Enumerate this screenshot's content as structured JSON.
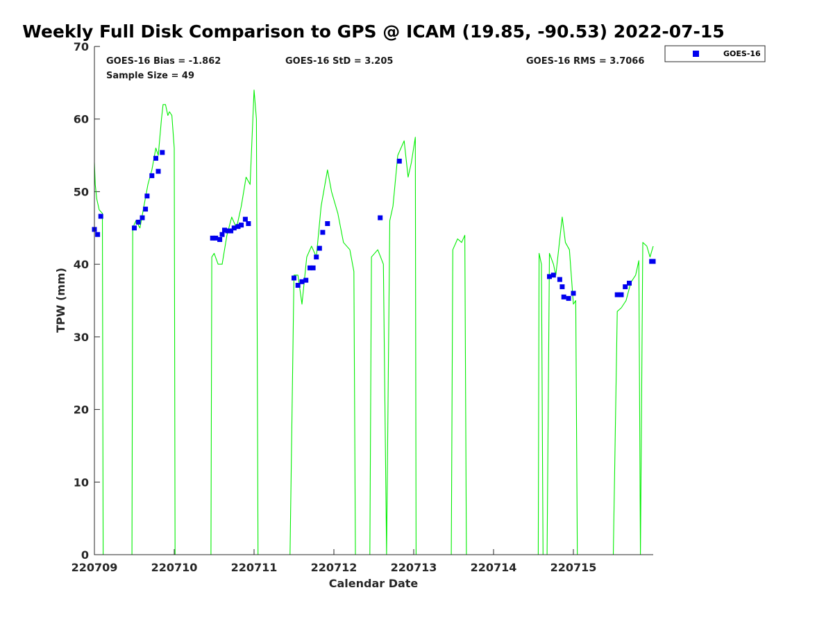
{
  "chart_data": {
    "type": "line",
    "title": "Weekly Full Disk Comparison to GPS @ ICAM (19.85, -90.53) 2022-07-15",
    "xlabel": "Calendar Date",
    "ylabel": "TPW (mm)",
    "xlim": [
      220709,
      220716
    ],
    "ylim": [
      0,
      70
    ],
    "x_ticks": [
      "220709",
      "220710",
      "220711",
      "220712",
      "220713",
      "220714",
      "220715"
    ],
    "y_ticks": [
      "0",
      "10",
      "20",
      "30",
      "40",
      "50",
      "60",
      "70"
    ],
    "stats": {
      "bias": "GOES-16 Bias = -1.862",
      "std": "GOES-16 StD = 3.205",
      "rms": "GOES-16 RMS = 3.7066",
      "sample": "Sample Size = 49"
    },
    "legend": {
      "position": "outside-top-right",
      "entries": [
        "GOES-16"
      ]
    },
    "grid": false,
    "colors": {
      "gps_line": "#00ee00",
      "goes_marker": "#0000ee"
    },
    "series": [
      {
        "kind": "line",
        "points": [
          [
            220709.0,
            54.0
          ],
          [
            220709.01,
            51.0
          ],
          [
            220709.03,
            49.0
          ],
          [
            220709.06,
            47.5
          ],
          [
            220709.1,
            47.0
          ],
          [
            220709.11,
            0.0
          ],
          [
            220709.47,
            0.0
          ],
          [
            220709.48,
            45.0
          ],
          [
            220709.52,
            46.0
          ],
          [
            220709.57,
            45.0
          ],
          [
            220709.62,
            48.0
          ],
          [
            220709.67,
            51.0
          ],
          [
            220709.72,
            53.0
          ],
          [
            220709.77,
            56.0
          ],
          [
            220709.8,
            55.0
          ],
          [
            220709.84,
            60.0
          ],
          [
            220709.86,
            62.0
          ],
          [
            220709.89,
            62.0
          ],
          [
            220709.92,
            60.5
          ],
          [
            220709.94,
            61.0
          ],
          [
            220709.97,
            60.5
          ],
          [
            220710.0,
            56.0
          ],
          [
            220710.01,
            0.0
          ],
          [
            220710.46,
            0.0
          ],
          [
            220710.47,
            41.0
          ],
          [
            220710.5,
            41.5
          ],
          [
            220710.55,
            40.0
          ],
          [
            220710.6,
            40.0
          ],
          [
            220710.66,
            44.0
          ],
          [
            220710.72,
            46.5
          ],
          [
            220710.78,
            45.0
          ],
          [
            220710.84,
            48.0
          ],
          [
            220710.9,
            52.0
          ],
          [
            220710.95,
            51.0
          ],
          [
            220711.0,
            64.0
          ],
          [
            220711.03,
            60.0
          ],
          [
            220711.05,
            0.0
          ],
          [
            220711.45,
            0.0
          ],
          [
            220711.5,
            38.5
          ],
          [
            220711.55,
            38.5
          ],
          [
            220711.6,
            34.5
          ],
          [
            220711.66,
            41.0
          ],
          [
            220711.72,
            42.5
          ],
          [
            220711.78,
            41.0
          ],
          [
            220711.84,
            48.0
          ],
          [
            220711.92,
            53.0
          ],
          [
            220711.97,
            50.0
          ],
          [
            220712.05,
            47.0
          ],
          [
            220712.12,
            43.0
          ],
          [
            220712.2,
            42.0
          ],
          [
            220712.25,
            39.0
          ],
          [
            220712.27,
            0.0
          ],
          [
            220712.45,
            0.0
          ],
          [
            220712.47,
            41.0
          ],
          [
            220712.55,
            42.0
          ],
          [
            220712.62,
            40.0
          ],
          [
            220712.66,
            0.0
          ],
          [
            220712.7,
            46.0
          ],
          [
            220712.74,
            48.0
          ],
          [
            220712.8,
            55.0
          ],
          [
            220712.88,
            57.0
          ],
          [
            220712.93,
            52.0
          ],
          [
            220712.97,
            54.0
          ],
          [
            220713.02,
            57.5
          ],
          [
            220713.03,
            0.0
          ],
          [
            220713.47,
            0.0
          ],
          [
            220713.49,
            42.0
          ],
          [
            220713.55,
            43.5
          ],
          [
            220713.6,
            43.0
          ],
          [
            220713.64,
            44.0
          ],
          [
            220713.66,
            0.0
          ],
          [
            220714.56,
            0.0
          ],
          [
            220714.57,
            41.5
          ],
          [
            220714.6,
            40.0
          ],
          [
            220714.62,
            0.0
          ],
          [
            220714.67,
            0.0
          ],
          [
            220714.7,
            41.5
          ],
          [
            220714.75,
            40.0
          ],
          [
            220714.78,
            38.5
          ],
          [
            220714.86,
            46.5
          ],
          [
            220714.9,
            43.0
          ],
          [
            220714.95,
            42.0
          ],
          [
            220715.0,
            34.5
          ],
          [
            220715.03,
            35.0
          ],
          [
            220715.05,
            0.0
          ],
          [
            220715.5,
            0.0
          ],
          [
            220715.55,
            33.5
          ],
          [
            220715.6,
            34.0
          ],
          [
            220715.66,
            35.0
          ],
          [
            220715.72,
            37.5
          ],
          [
            220715.78,
            38.5
          ],
          [
            220715.82,
            40.5
          ],
          [
            220715.84,
            0.0
          ],
          [
            220715.87,
            43.0
          ],
          [
            220715.92,
            42.5
          ],
          [
            220715.96,
            41.0
          ],
          [
            220716.0,
            42.5
          ]
        ]
      },
      {
        "kind": "scatter",
        "name": "GOES-16",
        "points": [
          [
            220709.0,
            44.8
          ],
          [
            220709.04,
            44.1
          ],
          [
            220709.08,
            46.6
          ],
          [
            220709.5,
            45.0
          ],
          [
            220709.55,
            45.8
          ],
          [
            220709.6,
            46.4
          ],
          [
            220709.64,
            47.6
          ],
          [
            220709.66,
            49.4
          ],
          [
            220709.72,
            52.2
          ],
          [
            220709.77,
            54.6
          ],
          [
            220709.8,
            52.8
          ],
          [
            220709.85,
            55.4
          ],
          [
            220710.48,
            43.6
          ],
          [
            220710.52,
            43.6
          ],
          [
            220710.57,
            43.4
          ],
          [
            220710.6,
            44.1
          ],
          [
            220710.63,
            44.7
          ],
          [
            220710.67,
            44.6
          ],
          [
            220710.71,
            44.6
          ],
          [
            220710.75,
            45.0
          ],
          [
            220710.8,
            45.2
          ],
          [
            220710.84,
            45.4
          ],
          [
            220710.89,
            46.2
          ],
          [
            220710.93,
            45.6
          ],
          [
            220711.5,
            38.1
          ],
          [
            220711.55,
            37.1
          ],
          [
            220711.6,
            37.6
          ],
          [
            220711.65,
            37.8
          ],
          [
            220711.7,
            39.5
          ],
          [
            220711.74,
            39.5
          ],
          [
            220711.78,
            41.0
          ],
          [
            220711.82,
            42.2
          ],
          [
            220711.86,
            44.4
          ],
          [
            220711.92,
            45.6
          ],
          [
            220712.58,
            46.4
          ],
          [
            220712.82,
            54.2
          ],
          [
            220714.7,
            38.3
          ],
          [
            220714.75,
            38.5
          ],
          [
            220714.83,
            37.9
          ],
          [
            220714.86,
            36.9
          ],
          [
            220714.88,
            35.5
          ],
          [
            220714.94,
            35.3
          ],
          [
            220715.0,
            36.0
          ],
          [
            220715.55,
            35.8
          ],
          [
            220715.6,
            35.8
          ],
          [
            220715.65,
            36.9
          ],
          [
            220715.7,
            37.4
          ],
          [
            220715.98,
            40.4
          ],
          [
            220716.0,
            40.4
          ]
        ]
      }
    ]
  }
}
